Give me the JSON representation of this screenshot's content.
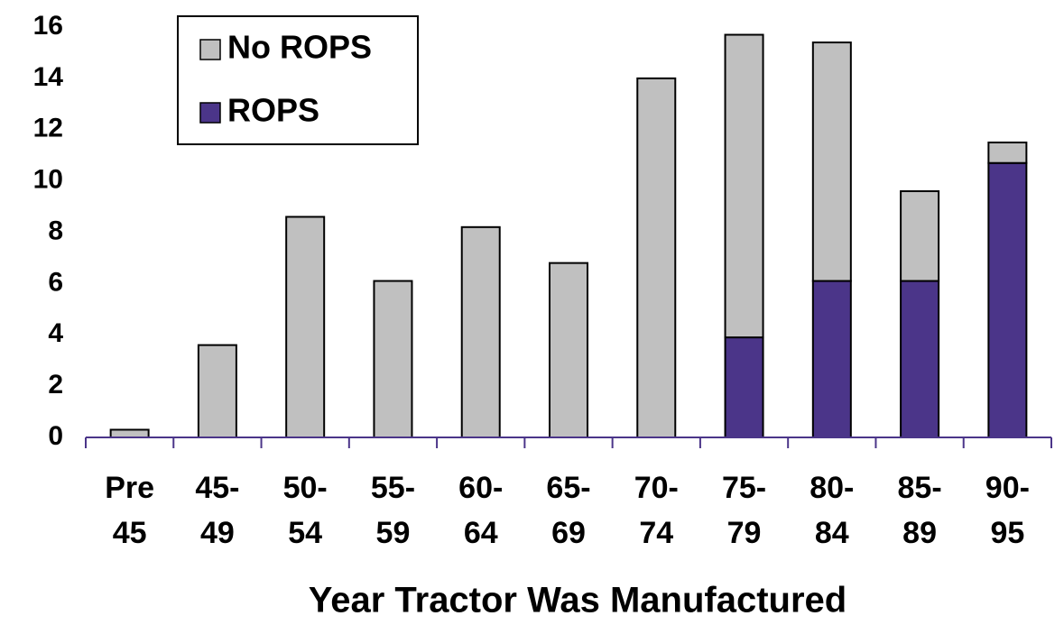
{
  "chart_data": {
    "type": "stacked_bar",
    "xlabel": "Year Tractor Was Manufactured",
    "categories": [
      [
        "Pre",
        "45"
      ],
      [
        "45-",
        "49"
      ],
      [
        "50-",
        "54"
      ],
      [
        "55-",
        "59"
      ],
      [
        "60-",
        "64"
      ],
      [
        "65-",
        "69"
      ],
      [
        "70-",
        "74"
      ],
      [
        "75-",
        "79"
      ],
      [
        "80-",
        "84"
      ],
      [
        "85-",
        "89"
      ],
      [
        "90-",
        "95"
      ]
    ],
    "series": [
      {
        "name": "No ROPS",
        "color": "#c0c0c0",
        "values": [
          0.3,
          3.6,
          8.6,
          6.1,
          8.2,
          6.8,
          14.0,
          11.8,
          9.3,
          3.5,
          0.8
        ]
      },
      {
        "name": "ROPS",
        "color": "#4b3589",
        "values": [
          0,
          0,
          0,
          0,
          0,
          0,
          0,
          3.9,
          6.1,
          6.1,
          10.7
        ]
      }
    ],
    "ylim": [
      0,
      16
    ],
    "yticks": [
      0,
      2,
      4,
      6,
      8,
      10,
      12,
      14,
      16
    ],
    "legend": "top-left"
  }
}
